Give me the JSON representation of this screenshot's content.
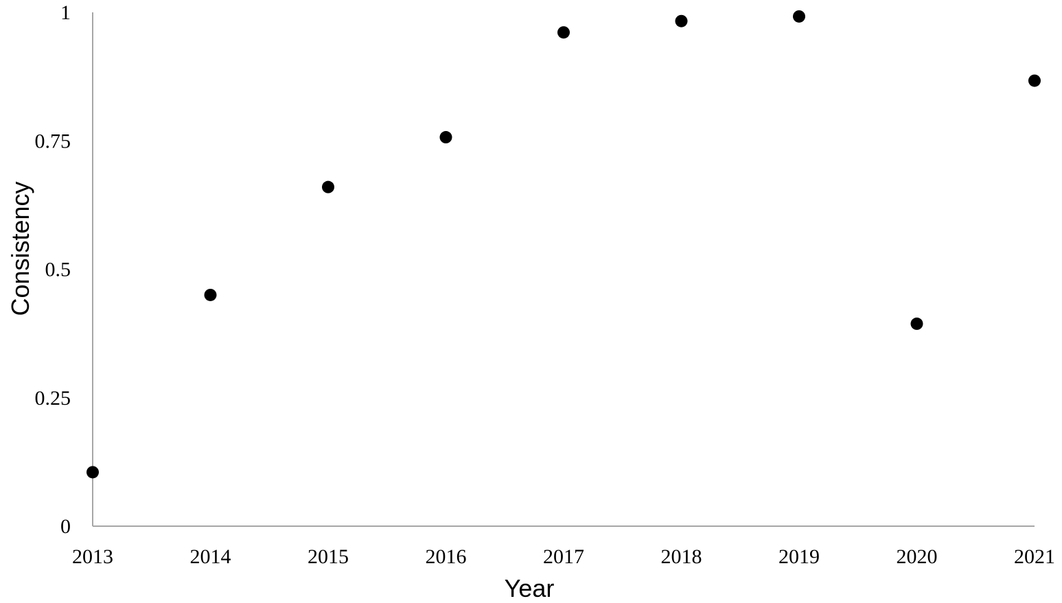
{
  "chart_data": {
    "type": "scatter",
    "title": "",
    "xlabel": "Year",
    "ylabel": "Consistency",
    "x": [
      2013,
      2014,
      2015,
      2016,
      2017,
      2018,
      2019,
      2020,
      2021
    ],
    "y": [
      0.105,
      0.45,
      0.66,
      0.757,
      0.961,
      0.983,
      0.992,
      0.394,
      0.867
    ],
    "xlim": [
      2013,
      2021
    ],
    "ylim": [
      0,
      1
    ],
    "x_ticks": [
      "2013",
      "2014",
      "2015",
      "2016",
      "2017",
      "2018",
      "2019",
      "2020",
      "2021"
    ],
    "y_ticks": [
      "0",
      "0.25",
      "0.5",
      "0.75",
      "1"
    ],
    "y_tick_values": [
      0,
      0.25,
      0.5,
      0.75,
      1
    ],
    "grid": false,
    "legend": "none",
    "marker_color": "#000000",
    "axis_color": "#a6a6a6"
  }
}
